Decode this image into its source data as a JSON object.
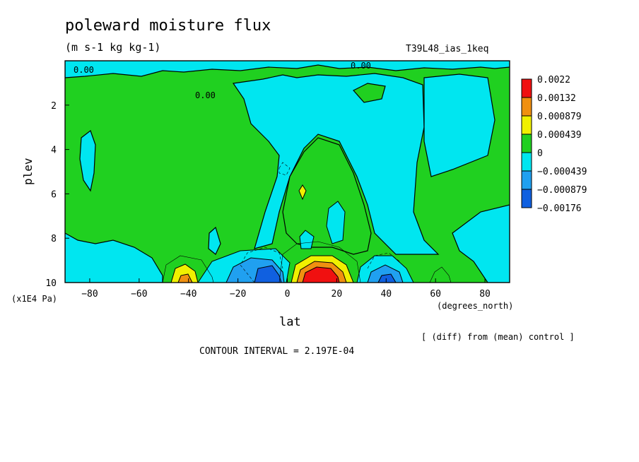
{
  "chart_data": {
    "type": "heatmap",
    "title": "poleward moisture flux",
    "subtitle": "(m s-1 kg kg-1)",
    "run_label": "T39L48_ias_1keq",
    "xlabel": "lat",
    "x_unit": "(degrees_north)",
    "ylabel": "plev",
    "y_unit": "(x1E4 Pa)",
    "note": "[ (diff) from (mean) control ]",
    "contour_interval": "CONTOUR INTERVAL = 2.197E-04",
    "xlim": [
      -90,
      90
    ],
    "ylim": [
      10,
      0
    ],
    "x_ticks": [
      -80,
      -60,
      -40,
      -20,
      0,
      20,
      40,
      60,
      80
    ],
    "y_ticks": [
      2,
      4,
      6,
      8,
      10
    ],
    "contour_labels": [
      "0.00",
      "0.00",
      "0.00"
    ],
    "legend": [
      {
        "label": "0.0022",
        "color": "#f01010"
      },
      {
        "label": "0.00132",
        "color": "#f09010"
      },
      {
        "label": "0.000879",
        "color": "#f0f000"
      },
      {
        "label": "0.000439",
        "color": "#20d020"
      },
      {
        "label": "0",
        "color": "#00e6f0"
      },
      {
        "label": "-0.000439",
        "color": "#20a0f0"
      },
      {
        "label": "-0.000879",
        "color": "#1060e0"
      },
      {
        "label": "-0.00176",
        "color": "#1060e0"
      }
    ],
    "legend_boxes": [
      "#f01010",
      "#f09010",
      "#f0f000",
      "#20d020",
      "#00e6f0",
      "#20a0f0",
      "#1060e0"
    ],
    "features": [
      {
        "name": "tropical-positive-max",
        "lat": 12,
        "plev": 9.7,
        "sign": "positive",
        "level": "0.0022"
      },
      {
        "name": "sh-subtropical-positive",
        "lat": -40,
        "plev": 9.8,
        "sign": "positive",
        "level": "0.000879"
      },
      {
        "name": "sh-negative-min",
        "lat": -12,
        "plev": 9.6,
        "sign": "negative",
        "level": "-0.000879"
      },
      {
        "name": "nh-negative-min",
        "lat": 40,
        "plev": 9.8,
        "sign": "negative",
        "level": "-0.000879"
      },
      {
        "name": "mid-level-positive-cell",
        "lat": 5,
        "plev": 6.0,
        "sign": "positive",
        "level": "0.000879"
      }
    ]
  }
}
